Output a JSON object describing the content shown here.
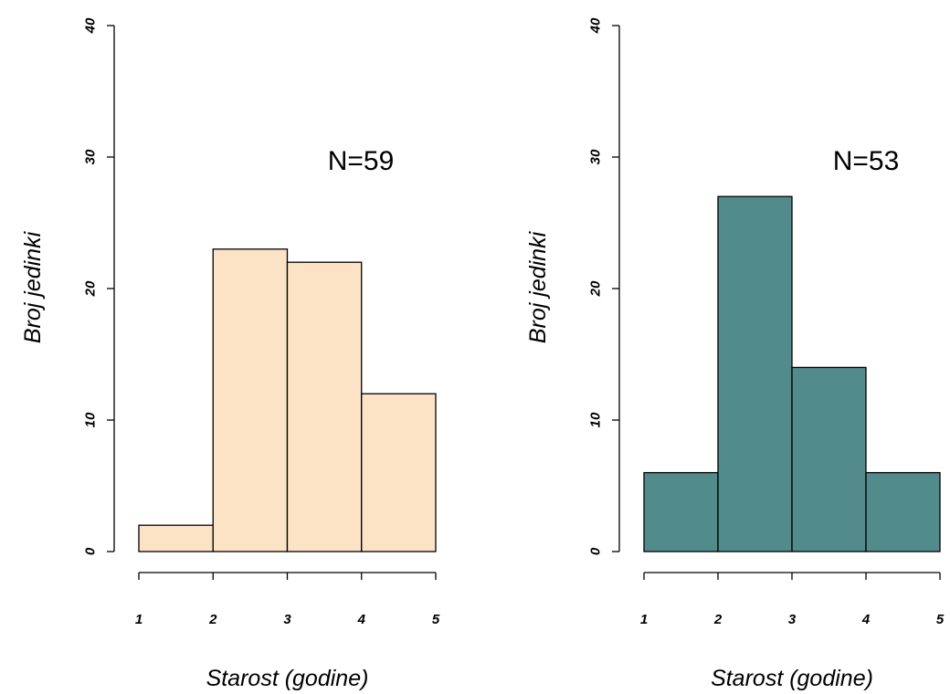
{
  "chart_data": [
    {
      "type": "histogram",
      "xlabel": "Starost (godine)",
      "ylabel": "Broj jedinki",
      "annotation": "N=59",
      "bins": [
        1,
        2,
        3,
        4,
        5
      ],
      "values": [
        2,
        23,
        22,
        12
      ],
      "color": "#fde3c5",
      "xlim": [
        1,
        5
      ],
      "xticks": [
        1,
        2,
        3,
        4,
        5
      ],
      "ylim": [
        0,
        40
      ],
      "yticks": [
        0,
        10,
        20,
        30,
        40
      ]
    },
    {
      "type": "histogram",
      "xlabel": "Starost (godine)",
      "ylabel": "Broj jedinki",
      "annotation": "N=53",
      "bins": [
        1,
        2,
        3,
        4,
        5
      ],
      "values": [
        6,
        27,
        14,
        6
      ],
      "color": "#528b8b",
      "xlim": [
        1,
        5
      ],
      "xticks": [
        1,
        2,
        3,
        4,
        5
      ],
      "ylim": [
        0,
        40
      ],
      "yticks": [
        0,
        10,
        20,
        30,
        40
      ]
    }
  ]
}
